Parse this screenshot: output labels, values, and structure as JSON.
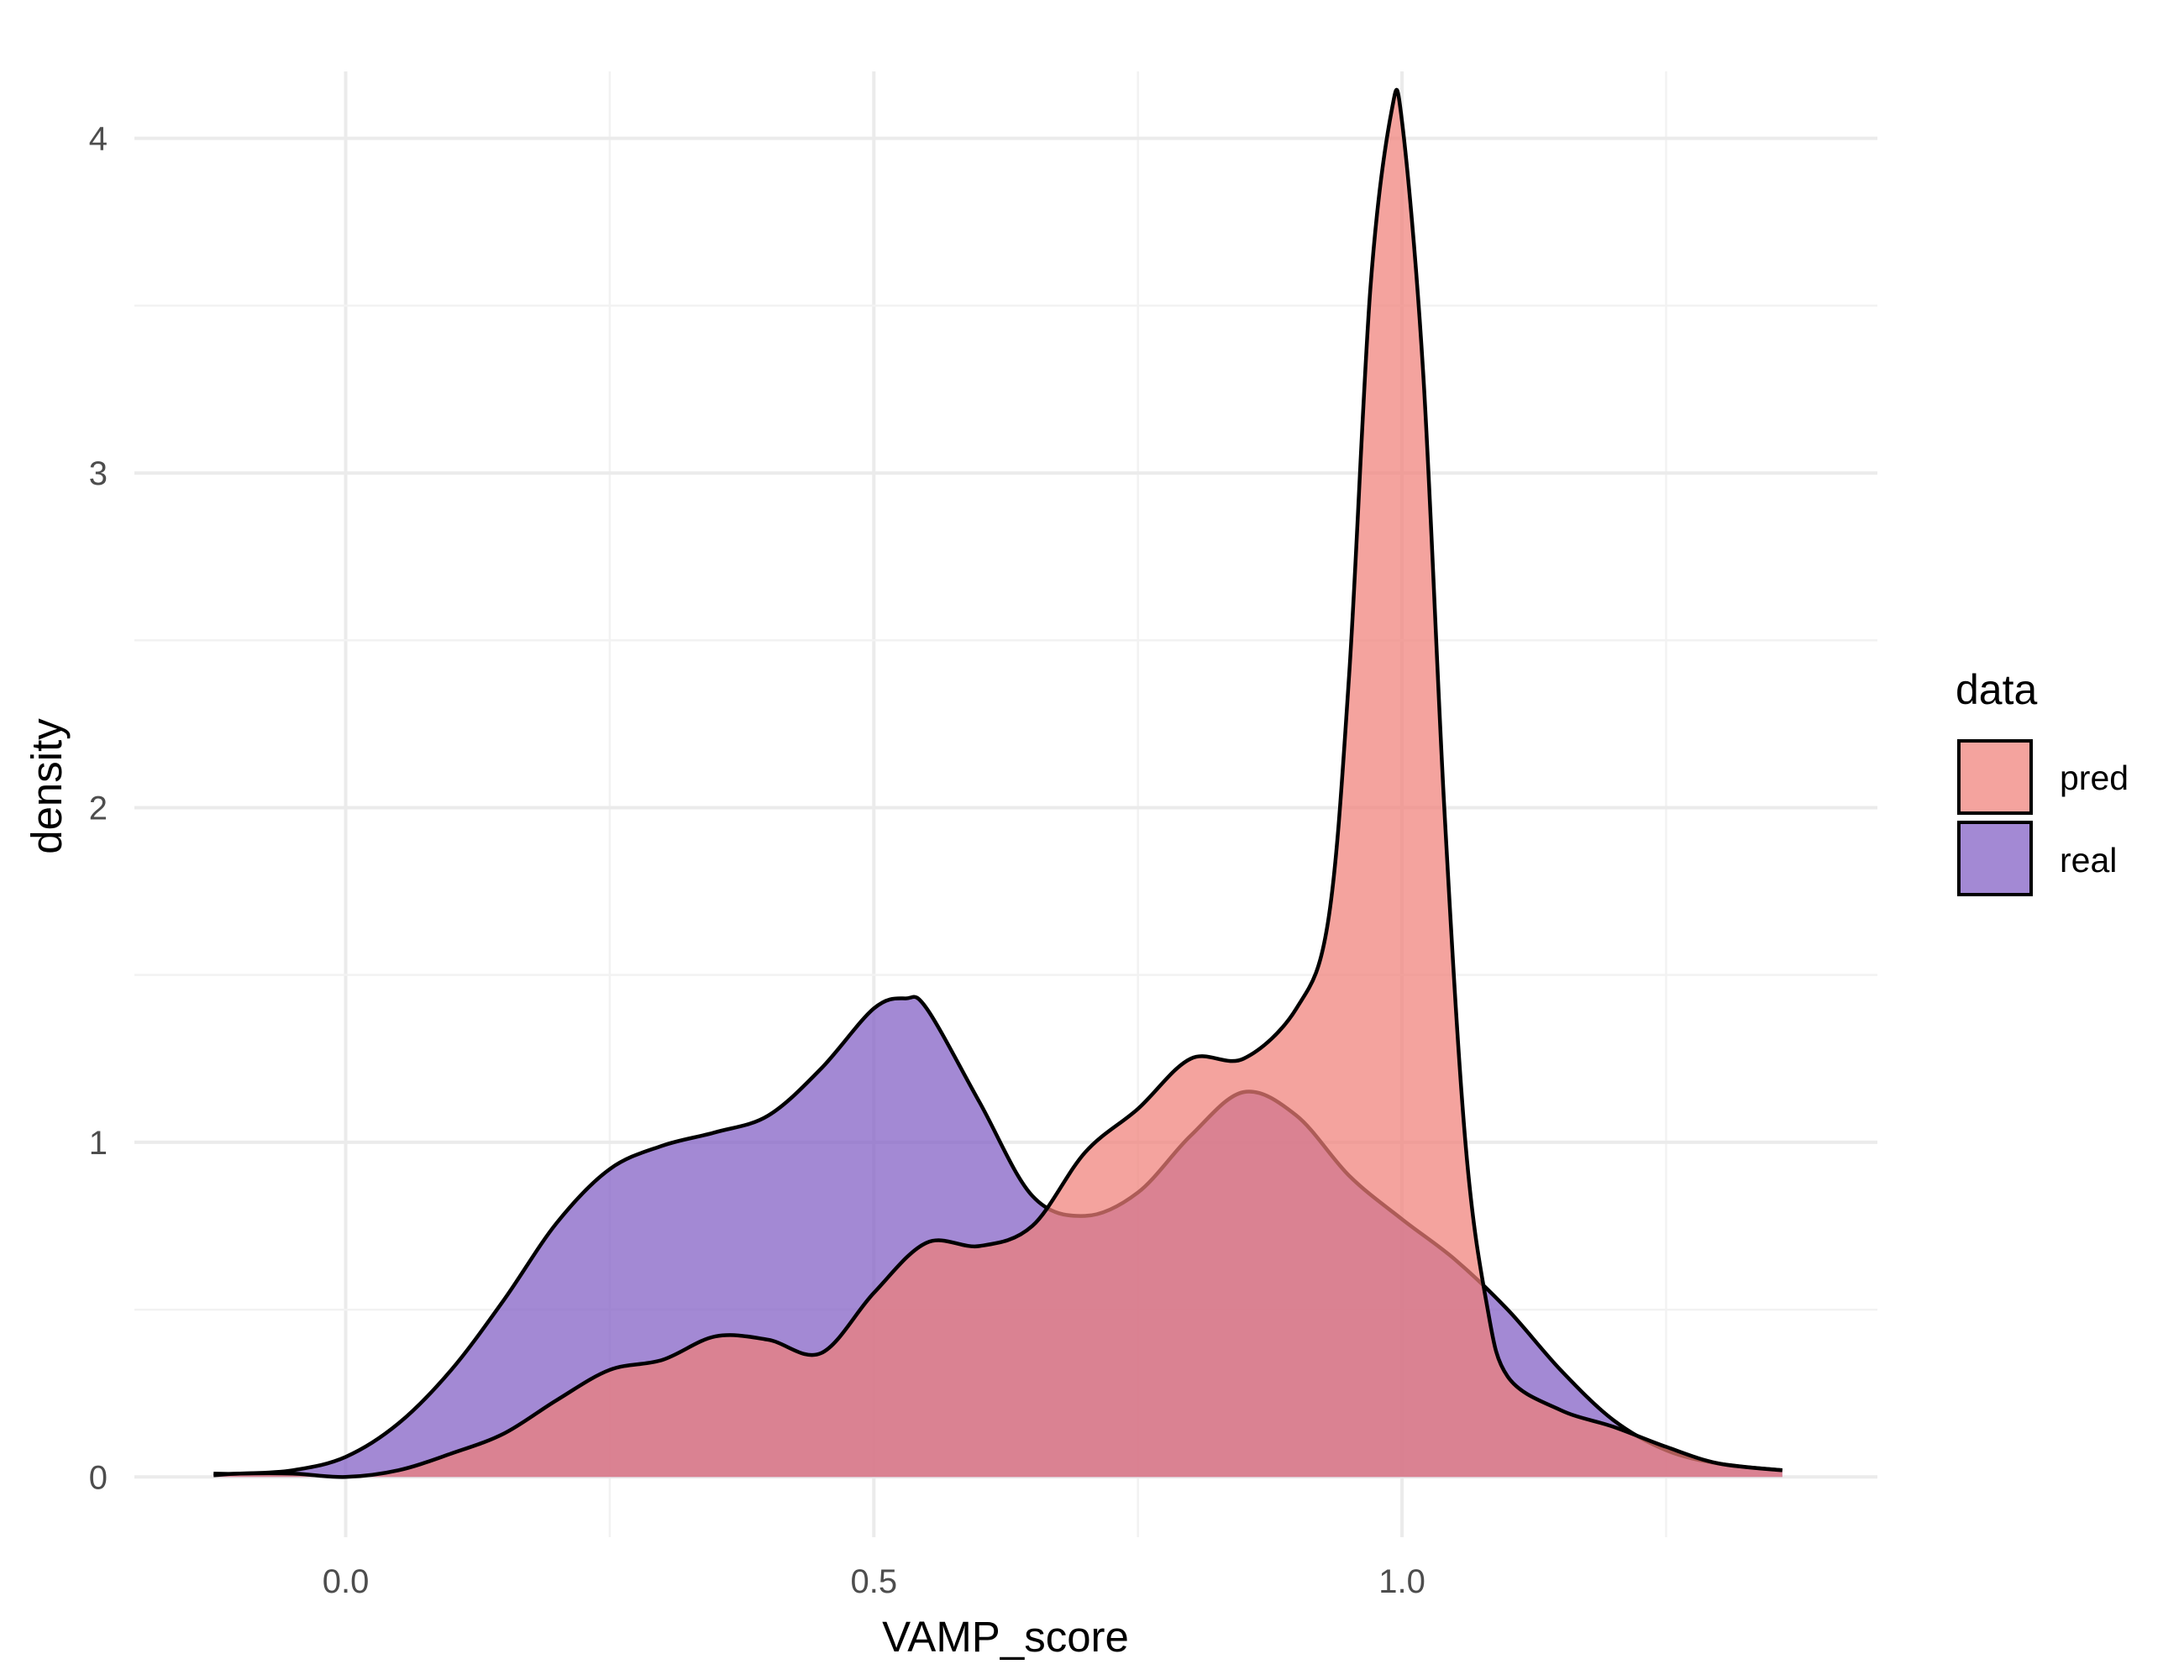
{
  "chart_data": {
    "type": "area",
    "subtype": "density",
    "xlabel": "VAMP_score",
    "ylabel": "density",
    "xlim": [
      -0.2,
      1.45
    ],
    "ylim": [
      -0.18,
      4.2
    ],
    "x_ticks": [
      0.0,
      0.5,
      1.0
    ],
    "x_tick_labels": [
      "0.0",
      "0.5",
      "1.0"
    ],
    "y_ticks": [
      0,
      1,
      2,
      3,
      4
    ],
    "y_tick_labels": [
      "0",
      "1",
      "2",
      "3",
      "4"
    ],
    "grid": true,
    "legend": {
      "title": "data",
      "position": "right",
      "entries": [
        "pred",
        "real"
      ]
    },
    "colors": {
      "pred": "#F08078",
      "real": "#7F5CC4",
      "outline": "#000000",
      "grid_major": "#EBEBEB",
      "grid_minor": "#F2F2F2"
    },
    "series": [
      {
        "name": "real",
        "x": [
          -0.125,
          -0.1,
          -0.05,
          0.0,
          0.05,
          0.1,
          0.15,
          0.2,
          0.25,
          0.3,
          0.35,
          0.4,
          0.45,
          0.5,
          0.53,
          0.55,
          0.6,
          0.65,
          0.7,
          0.75,
          0.8,
          0.85,
          0.9,
          0.95,
          1.0,
          1.05,
          1.1,
          1.15,
          1.2,
          1.25,
          1.3,
          1.36
        ],
        "y": [
          0.01,
          0.01,
          0.02,
          0.06,
          0.16,
          0.32,
          0.53,
          0.76,
          0.92,
          0.99,
          1.03,
          1.08,
          1.22,
          1.4,
          1.43,
          1.4,
          1.12,
          0.84,
          0.78,
          0.85,
          1.02,
          1.15,
          1.08,
          0.9,
          0.77,
          0.65,
          0.5,
          0.32,
          0.17,
          0.08,
          0.04,
          0.02
        ]
      },
      {
        "name": "pred",
        "x": [
          -0.125,
          -0.1,
          -0.05,
          0.0,
          0.05,
          0.1,
          0.15,
          0.2,
          0.25,
          0.3,
          0.35,
          0.4,
          0.45,
          0.5,
          0.55,
          0.6,
          0.65,
          0.7,
          0.75,
          0.8,
          0.85,
          0.9,
          0.93,
          0.95,
          0.97,
          0.99,
          1.0,
          1.02,
          1.04,
          1.06,
          1.08,
          1.1,
          1.15,
          1.2,
          1.25,
          1.3,
          1.36
        ],
        "y": [
          0.005,
          0.01,
          0.01,
          0.0,
          0.02,
          0.07,
          0.13,
          0.23,
          0.32,
          0.35,
          0.42,
          0.41,
          0.37,
          0.55,
          0.7,
          0.69,
          0.75,
          0.97,
          1.1,
          1.25,
          1.25,
          1.4,
          1.66,
          2.4,
          3.55,
          4.08,
          4.05,
          3.3,
          2.0,
          1.0,
          0.52,
          0.3,
          0.2,
          0.15,
          0.09,
          0.04,
          0.02
        ]
      }
    ]
  }
}
